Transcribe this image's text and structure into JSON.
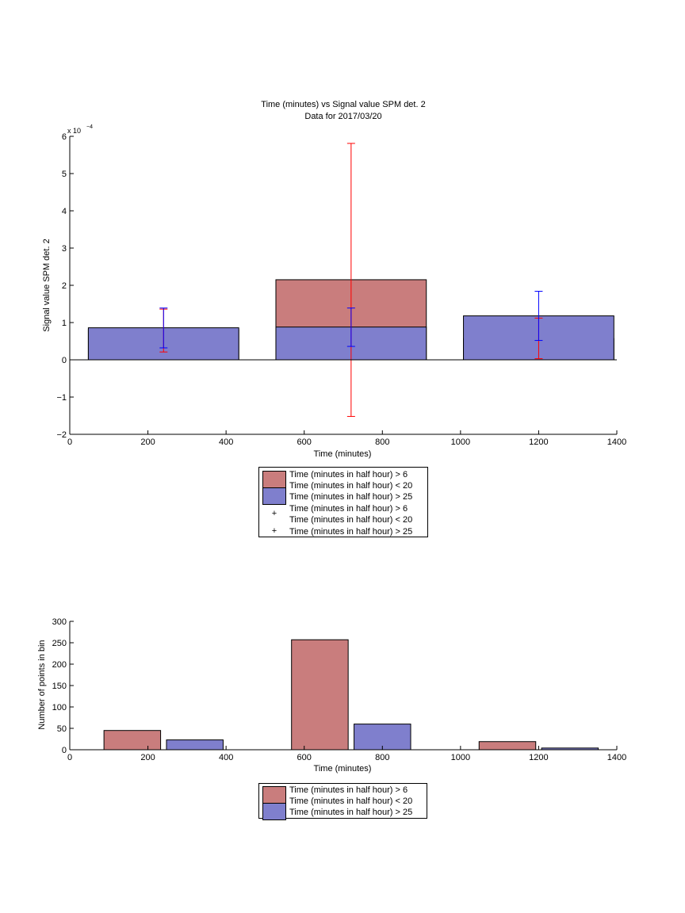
{
  "colors": {
    "group_a": "#c97d7d",
    "group_b": "#7f7fcd",
    "err_a": "#ff0000",
    "err_b": "#0000ff",
    "axis": "#000000"
  },
  "chart_data": [
    {
      "type": "bar",
      "title": "Time (minutes) vs Signal value SPM det. 2",
      "subtitle": "Data for 2017/03/20",
      "xlabel": "Time (minutes)",
      "ylabel": "Signal value SPM det. 2",
      "y_exponent_label": "x 10",
      "y_exponent_power": "−4",
      "xlim": [
        0,
        1400
      ],
      "ylim": [
        -2,
        6
      ],
      "y_scale_factor": 0.0001,
      "xticks": [
        0,
        200,
        400,
        600,
        800,
        1000,
        1200,
        1400
      ],
      "xtick_labels": [
        "0",
        "200",
        "400",
        "600",
        "800",
        "1000",
        "1200",
        "1400"
      ],
      "yticks": [
        -2,
        -1,
        0,
        1,
        2,
        3,
        4,
        5,
        6
      ],
      "ytick_labels": [
        "−2",
        "−1",
        "0",
        "1",
        "2",
        "3",
        "4",
        "5",
        "6"
      ],
      "grid": false,
      "legend_position": "below",
      "bin_centers": [
        240,
        720,
        1200
      ],
      "bar_width_minutes": 385,
      "series": [
        {
          "name": "Time (minutes in half hour) > 6 Time (minutes in half hour) < 20",
          "values": [
            0.81,
            2.15,
            0.57
          ],
          "err_low": [
            0.21,
            -1.52,
            0.03
          ],
          "err_high": [
            1.36,
            5.81,
            1.12
          ]
        },
        {
          "name": "Time (minutes in half hour) > 25",
          "values": [
            0.86,
            0.88,
            1.18
          ],
          "err_low": [
            0.32,
            0.36,
            0.52
          ],
          "err_high": [
            1.39,
            1.39,
            1.84
          ]
        }
      ],
      "legend": [
        {
          "kind": "bar",
          "series": 0,
          "line1": "Time (minutes in half hour) > 6",
          "line2": "Time (minutes in half hour) < 20"
        },
        {
          "kind": "bar",
          "series": 1,
          "line1": "Time (minutes in half hour) > 25",
          "line2": ""
        },
        {
          "kind": "marker",
          "series": 0,
          "line1": "Time (minutes in half hour) > 6",
          "line2": "Time (minutes in half hour) < 20"
        },
        {
          "kind": "marker",
          "series": 1,
          "line1": "Time (minutes in half hour) > 25",
          "line2": ""
        }
      ]
    },
    {
      "type": "bar",
      "title": "",
      "xlabel": "Time (minutes)",
      "ylabel": "Number of points in bin",
      "xlim": [
        0,
        1400
      ],
      "ylim": [
        0,
        300
      ],
      "xticks": [
        0,
        200,
        400,
        600,
        800,
        1000,
        1200,
        1400
      ],
      "xtick_labels": [
        "0",
        "200",
        "400",
        "600",
        "800",
        "1000",
        "1200",
        "1400"
      ],
      "yticks": [
        0,
        50,
        100,
        150,
        200,
        250,
        300
      ],
      "ytick_labels": [
        "0",
        "50",
        "100",
        "150",
        "200",
        "250",
        "300"
      ],
      "grid": false,
      "legend_position": "below",
      "bin_centers": [
        240,
        720,
        1200
      ],
      "bar_width_minutes": 145,
      "bar_offset_minutes": 80,
      "series": [
        {
          "name": "Time (minutes in half hour) > 6 Time (minutes in half hour) < 20",
          "values": [
            45,
            257,
            19
          ]
        },
        {
          "name": "Time (minutes in half hour) > 25",
          "values": [
            23,
            60,
            4
          ]
        }
      ],
      "legend": [
        {
          "kind": "bar",
          "series": 0,
          "line1": "Time (minutes in half hour) > 6",
          "line2": "Time (minutes in half hour) < 20"
        },
        {
          "kind": "bar",
          "series": 1,
          "line1": "Time (minutes in half hour) > 25",
          "line2": ""
        }
      ]
    }
  ]
}
